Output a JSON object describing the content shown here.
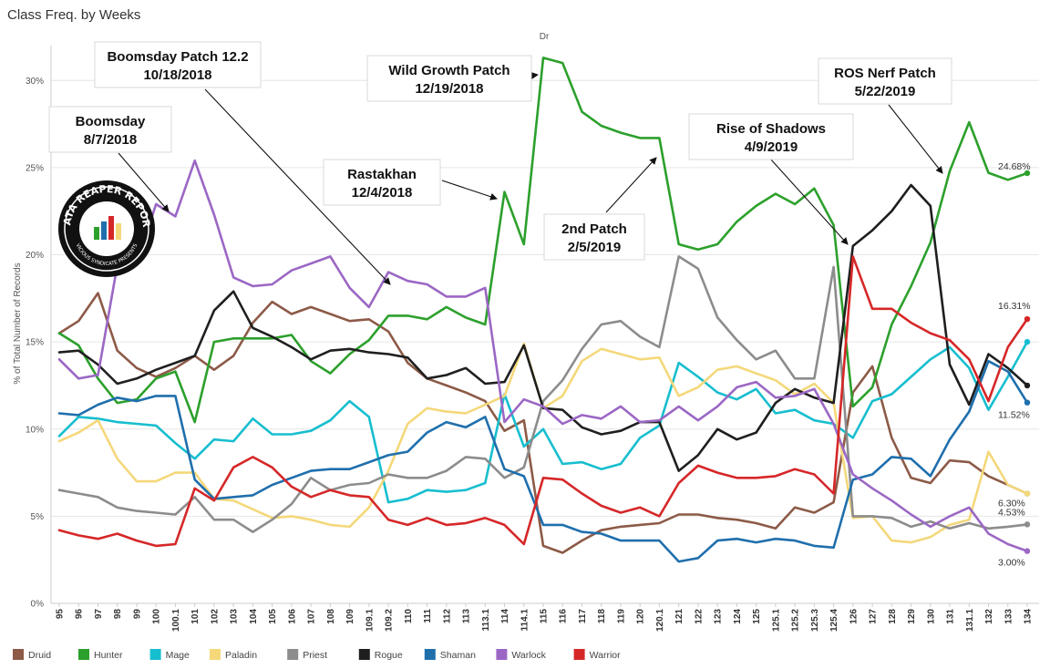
{
  "chart_data": {
    "type": "line",
    "title": "Class Freq. by Weeks",
    "header": "Dr",
    "ylabel": "% of Total Number of Records",
    "ylim": [
      0,
      32
    ],
    "yticks": [
      "0%",
      "5%",
      "10%",
      "15%",
      "20%",
      "25%",
      "30%"
    ],
    "grid": true,
    "legend_position": "bottom",
    "categories": [
      "95",
      "96",
      "97",
      "98",
      "99",
      "100",
      "100.1",
      "101",
      "102",
      "103",
      "104",
      "105",
      "106",
      "107",
      "108",
      "109",
      "109.1",
      "109.2",
      "110",
      "111",
      "112",
      "113",
      "113.1",
      "114",
      "114.1",
      "115",
      "116",
      "117",
      "118",
      "119",
      "120",
      "120.1",
      "121",
      "122",
      "123",
      "124",
      "125",
      "125.1",
      "125.2",
      "125.3",
      "125.4",
      "126",
      "127",
      "128",
      "129",
      "130",
      "131",
      "131.1",
      "132",
      "133",
      "134"
    ],
    "series": [
      {
        "name": "Druid",
        "color": "#8c5a47",
        "values": [
          15.5,
          16.2,
          17.8,
          14.5,
          13.5,
          13.0,
          13.5,
          14.2,
          13.4,
          14.2,
          16.1,
          17.3,
          16.6,
          17.0,
          16.6,
          16.2,
          16.3,
          15.6,
          13.8,
          12.9,
          12.5,
          12.1,
          11.6,
          9.9,
          10.5,
          3.3,
          2.9,
          3.6,
          4.2,
          4.4,
          4.5,
          4.6,
          5.1,
          5.1,
          4.9,
          4.8,
          4.6,
          4.3,
          5.5,
          5.2,
          5.8,
          12.1,
          13.6,
          9.5,
          7.2,
          6.9,
          8.2,
          8.1,
          7.3,
          6.8,
          6.3
        ]
      },
      {
        "name": "Hunter",
        "color": "#2ca02c",
        "values": [
          15.5,
          14.8,
          12.9,
          11.5,
          11.7,
          12.9,
          13.3,
          10.4,
          15.0,
          15.2,
          15.2,
          15.2,
          15.4,
          13.9,
          13.2,
          14.3,
          15.1,
          16.5,
          16.5,
          16.3,
          17.0,
          16.4,
          16.0,
          23.6,
          20.6,
          31.3,
          31.0,
          28.2,
          27.4,
          27.0,
          26.7,
          26.7,
          20.6,
          20.3,
          20.6,
          21.9,
          22.8,
          23.5,
          22.9,
          23.8,
          21.7,
          11.3,
          12.4,
          16.0,
          18.2,
          20.7,
          24.8,
          27.6,
          24.7,
          24.3,
          24.68
        ]
      },
      {
        "name": "Mage",
        "color": "#17becf",
        "values": [
          9.6,
          10.7,
          10.6,
          10.4,
          10.3,
          10.2,
          9.2,
          8.3,
          9.4,
          9.3,
          10.6,
          9.7,
          9.7,
          9.9,
          10.5,
          11.6,
          10.7,
          5.8,
          6.0,
          6.5,
          6.4,
          6.5,
          6.9,
          12.0,
          9.0,
          10.0,
          8.0,
          8.1,
          7.7,
          8.0,
          9.5,
          10.2,
          13.8,
          13.0,
          12.1,
          11.7,
          12.3,
          10.9,
          11.1,
          10.5,
          10.3,
          9.5,
          11.6,
          12.0,
          13.0,
          14.0,
          14.7,
          13.5,
          11.1,
          13.0,
          15.0
        ]
      },
      {
        "name": "Paladin",
        "color": "#f4d87a",
        "values": [
          9.3,
          9.8,
          10.5,
          8.3,
          7.0,
          7.0,
          7.5,
          7.5,
          6.0,
          5.9,
          5.4,
          4.9,
          5.0,
          4.8,
          4.5,
          4.4,
          5.5,
          7.6,
          10.3,
          11.2,
          11.0,
          10.9,
          11.4,
          11.9,
          14.9,
          11.2,
          11.9,
          13.9,
          14.6,
          14.3,
          14.0,
          14.1,
          11.9,
          12.4,
          13.4,
          13.6,
          13.2,
          12.8,
          12.0,
          12.6,
          11.5,
          4.9,
          5.0,
          3.6,
          3.5,
          3.8,
          4.5,
          4.8,
          8.7,
          6.8,
          6.3
        ]
      },
      {
        "name": "Priest",
        "color": "#8c8c8c",
        "values": [
          6.5,
          6.3,
          6.1,
          5.5,
          5.3,
          5.2,
          5.1,
          6.1,
          4.8,
          4.8,
          4.1,
          4.8,
          5.7,
          7.2,
          6.5,
          6.8,
          6.9,
          7.4,
          7.2,
          7.2,
          7.6,
          8.4,
          8.3,
          7.2,
          7.8,
          11.6,
          12.8,
          14.6,
          16.0,
          16.2,
          15.3,
          14.7,
          19.9,
          19.2,
          16.4,
          15.1,
          14.0,
          14.5,
          12.9,
          12.9,
          19.3,
          5.0,
          5.0,
          4.9,
          4.4,
          4.7,
          4.3,
          4.6,
          4.3,
          4.4,
          4.53
        ]
      },
      {
        "name": "Rogue",
        "color": "#1f1f1f",
        "values": [
          14.4,
          14.5,
          13.7,
          12.6,
          12.9,
          13.4,
          13.8,
          14.2,
          16.8,
          17.9,
          15.8,
          15.3,
          14.7,
          14.0,
          14.5,
          14.6,
          14.4,
          14.3,
          14.1,
          12.9,
          13.1,
          13.5,
          12.6,
          12.7,
          14.8,
          11.2,
          11.1,
          10.1,
          9.7,
          9.9,
          10.4,
          10.4,
          7.6,
          8.5,
          10.0,
          9.4,
          9.8,
          11.5,
          12.3,
          11.8,
          11.5,
          20.5,
          21.4,
          22.5,
          24.0,
          22.8,
          13.7,
          11.4,
          14.3,
          13.5,
          12.5
        ]
      },
      {
        "name": "Shaman",
        "color": "#1f6fad",
        "values": [
          10.9,
          10.8,
          11.4,
          11.8,
          11.6,
          11.9,
          11.9,
          7.1,
          6.0,
          6.1,
          6.2,
          6.8,
          7.2,
          7.6,
          7.7,
          7.7,
          8.1,
          8.5,
          8.7,
          9.8,
          10.4,
          10.1,
          10.7,
          7.7,
          7.3,
          4.5,
          4.5,
          4.1,
          4.0,
          3.6,
          3.6,
          3.6,
          2.4,
          2.6,
          3.6,
          3.7,
          3.5,
          3.7,
          3.6,
          3.3,
          3.2,
          7.1,
          7.4,
          8.4,
          8.3,
          7.3,
          9.4,
          11.0,
          13.9,
          13.3,
          11.52
        ]
      },
      {
        "name": "Warlock",
        "color": "#9b67c4",
        "values": [
          14.0,
          12.9,
          13.1,
          19.4,
          19.5,
          22.9,
          22.2,
          25.4,
          22.3,
          18.7,
          18.2,
          18.3,
          19.1,
          19.5,
          19.9,
          18.1,
          17.0,
          19.0,
          18.5,
          18.3,
          17.6,
          17.6,
          18.1,
          10.4,
          11.7,
          11.3,
          10.3,
          10.8,
          10.6,
          11.3,
          10.4,
          10.5,
          11.3,
          10.5,
          11.3,
          12.4,
          12.7,
          11.8,
          11.9,
          12.3,
          10.3,
          7.4,
          6.6,
          5.9,
          5.1,
          4.4,
          5.0,
          5.5,
          4.0,
          3.4,
          3.0
        ]
      },
      {
        "name": "Warrior",
        "color": "#d62728",
        "values": [
          4.2,
          3.9,
          3.7,
          4.0,
          3.6,
          3.3,
          3.4,
          6.6,
          5.9,
          7.8,
          8.4,
          7.8,
          6.7,
          6.1,
          6.5,
          6.2,
          6.1,
          4.8,
          4.5,
          4.9,
          4.5,
          4.6,
          4.9,
          4.5,
          3.4,
          7.2,
          7.1,
          6.3,
          5.6,
          5.2,
          5.5,
          5.0,
          6.9,
          7.9,
          7.5,
          7.2,
          7.2,
          7.3,
          7.7,
          7.4,
          6.3,
          19.9,
          16.9,
          16.9,
          16.1,
          15.5,
          15.1,
          14.0,
          11.6,
          14.7,
          16.31
        ]
      }
    ],
    "end_labels": [
      "24.68%",
      "16.31%",
      "11.52%",
      "6.30%",
      "4.53%",
      "3.00%"
    ],
    "annotations": [
      {
        "line1": "Boomsday Patch 12.2",
        "line2": "10/18/2018",
        "target": "109.2"
      },
      {
        "line1": "Boomsday",
        "line2": "8/7/2018",
        "target": "101"
      },
      {
        "line1": "Wild Growth Patch",
        "line2": "12/19/2018",
        "target": "115"
      },
      {
        "line1": "Rastakhan",
        "line2": "12/4/2018",
        "target": "114"
      },
      {
        "line1": "2nd Patch",
        "line2": "2/5/2019",
        "target": "120.1"
      },
      {
        "line1": "Rise of Shadows",
        "line2": "4/9/2019",
        "target": "126"
      },
      {
        "line1": "ROS Nerf Patch",
        "line2": "5/22/2019",
        "target": "131"
      }
    ]
  },
  "logo": {
    "text": "DATA REAPER REPORT",
    "subtext": "VICIOUS SYNDICATE PRESENTS"
  }
}
